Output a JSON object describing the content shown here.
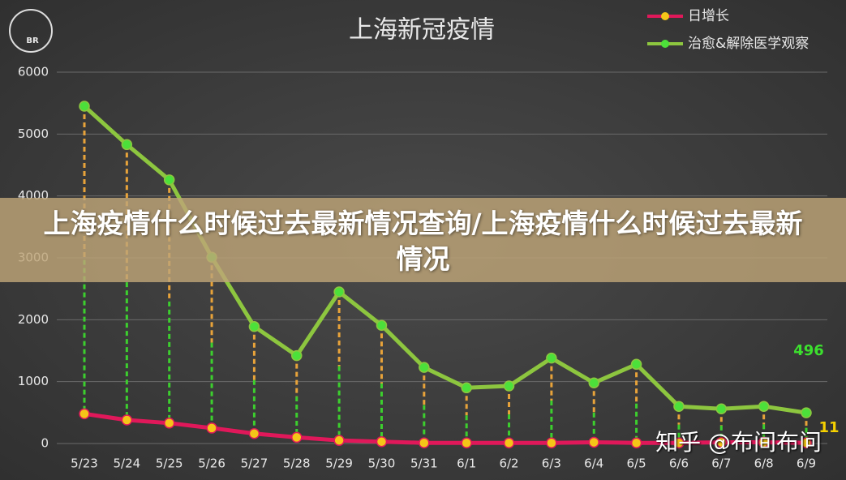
{
  "chart_data": {
    "type": "line",
    "title": "上海新冠疫情",
    "categories": [
      "5/23",
      "5/24",
      "5/25",
      "5/26",
      "5/27",
      "5/28",
      "5/29",
      "5/30",
      "5/31",
      "6/1",
      "6/2",
      "6/3",
      "6/4",
      "6/5",
      "6/6",
      "6/7",
      "6/8",
      "6/9"
    ],
    "series": [
      {
        "name": "日增长",
        "color": "#e0185a",
        "marker_color": "#f5c518",
        "values": [
          480,
          380,
          330,
          250,
          160,
          100,
          50,
          30,
          10,
          10,
          10,
          10,
          20,
          10,
          10,
          20,
          20,
          11
        ]
      },
      {
        "name": "治愈&解除医学观察",
        "color": "#8dc63f",
        "marker_color": "#4ce03a",
        "values": [
          5450,
          4830,
          4260,
          3010,
          1890,
          1420,
          2450,
          1910,
          1230,
          900,
          930,
          1380,
          980,
          1280,
          600,
          560,
          600,
          496
        ]
      }
    ],
    "ylim": [
      0,
      6000
    ],
    "yticks": [
      0,
      1000,
      2000,
      3000,
      4000,
      5000,
      6000
    ],
    "grid": true,
    "legend": "top-right"
  },
  "banner": {
    "title": "上海疫情什么时候过去最新情况查询/上海疫情什么时候过去最新情况"
  },
  "watermark": "知乎 @布间布问",
  "logo": "BR"
}
